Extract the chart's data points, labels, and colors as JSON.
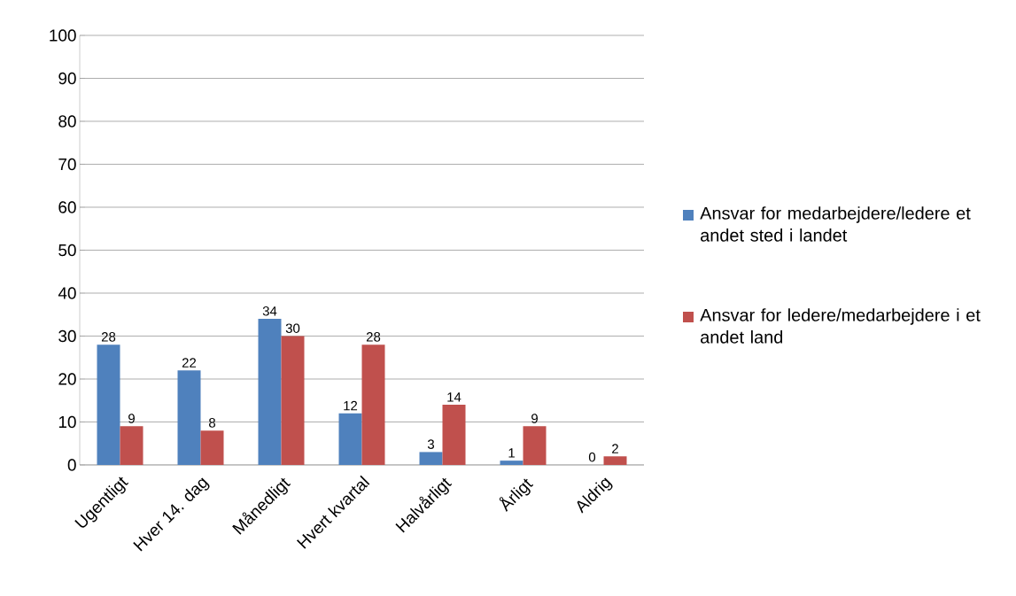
{
  "chart_data": {
    "type": "bar",
    "categories": [
      "Ugentligt",
      "Hver 14. dag",
      "Månedligt",
      "Hvert kvartal",
      "Halvårligt",
      "Årligt",
      "Aldrig"
    ],
    "series": [
      {
        "name": "Ansvar for medarbejdere/ledere et andet sted i landet",
        "color": "#4f81bd",
        "values": [
          28,
          22,
          34,
          12,
          3,
          1,
          0
        ]
      },
      {
        "name": "Ansvar for ledere/medarbejdere i et andet land",
        "color": "#c0504d",
        "values": [
          9,
          8,
          30,
          28,
          14,
          9,
          2
        ]
      }
    ],
    "ylim": [
      0,
      100
    ],
    "yticks": [
      0,
      10,
      20,
      30,
      40,
      50,
      60,
      70,
      80,
      90,
      100
    ],
    "grid": "y",
    "legend": "right",
    "data_labels": true
  }
}
